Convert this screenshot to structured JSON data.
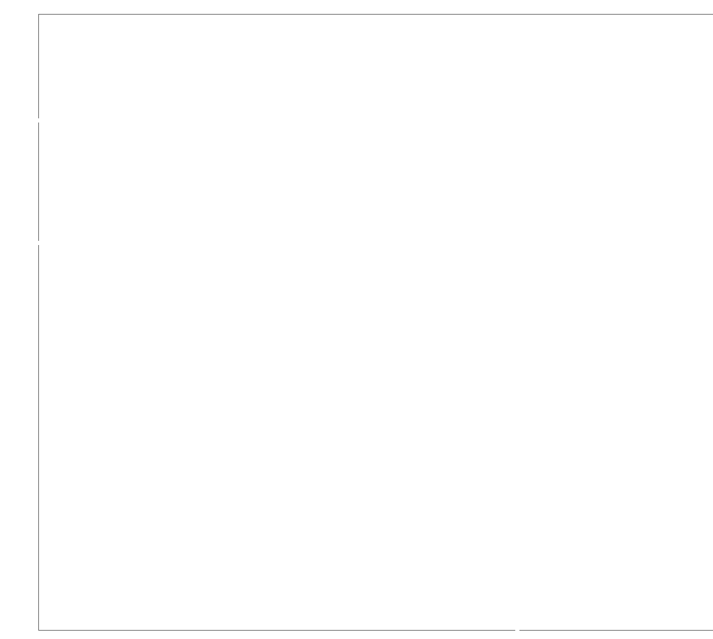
{
  "canvas": {
    "background": "#ffffff",
    "line_color": "#6b6b6b",
    "text": []
  }
}
